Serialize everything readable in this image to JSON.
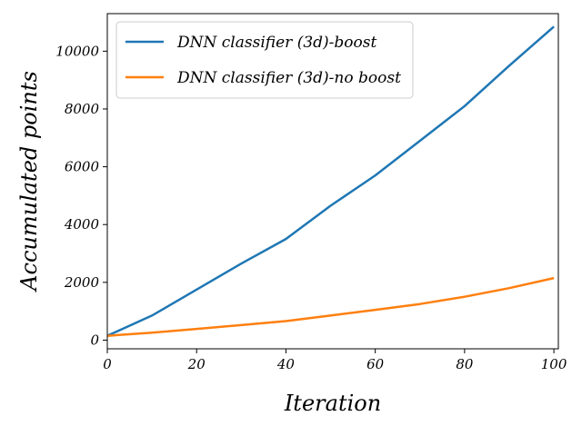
{
  "chart_data": {
    "type": "line",
    "xlabel": "Iteration",
    "ylabel": "Accumulated points",
    "xlim": [
      0,
      101
    ],
    "ylim": [
      -300,
      11300
    ],
    "xticks": [
      0,
      20,
      40,
      60,
      80,
      100
    ],
    "yticks": [
      0,
      2000,
      4000,
      6000,
      8000,
      10000
    ],
    "legend_position": "top-left",
    "grid": false,
    "x": [
      0,
      10,
      20,
      30,
      40,
      50,
      60,
      70,
      80,
      90,
      100
    ],
    "series": [
      {
        "name": "DNN classifier (3d)-boost",
        "color": "#1f77b4",
        "values": [
          150,
          850,
          1750,
          2650,
          3500,
          4650,
          5700,
          6900,
          8100,
          9500,
          10850
        ]
      },
      {
        "name": "DNN classifier (3d)-no boost",
        "color": "#ff7f0e",
        "values": [
          150,
          260,
          390,
          520,
          660,
          850,
          1050,
          1250,
          1500,
          1800,
          2150
        ]
      }
    ]
  }
}
